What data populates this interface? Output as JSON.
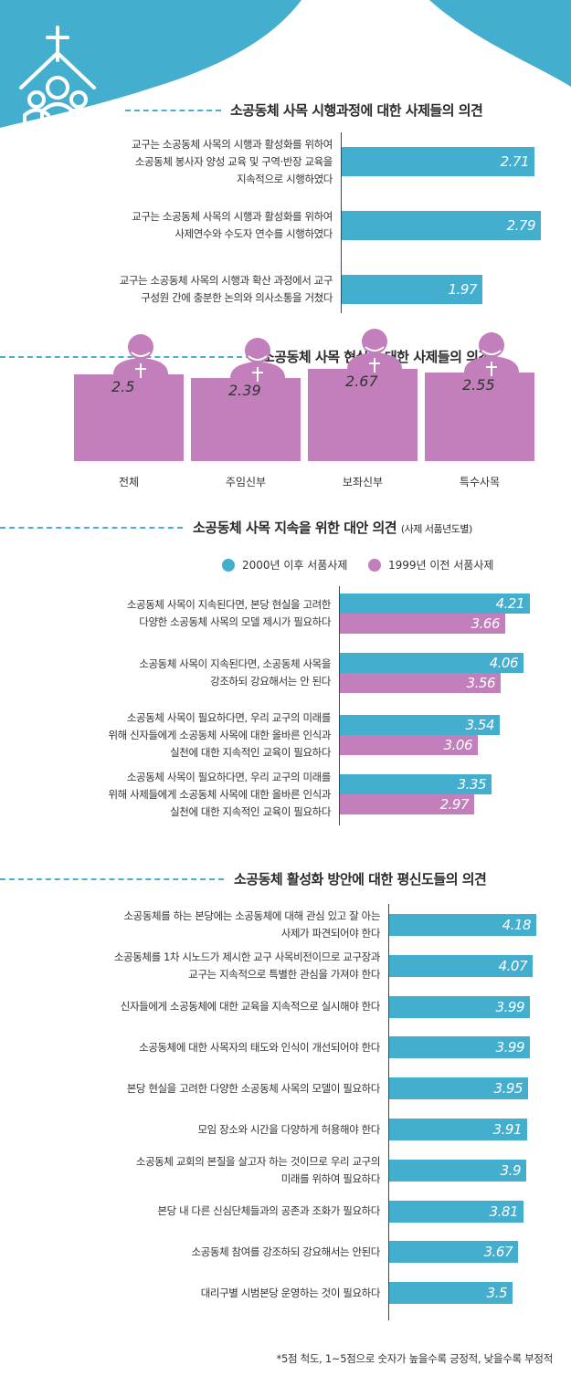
{
  "colors": {
    "teal": "#44aecf",
    "pink": "#c27fbb",
    "dash": "#4badd1"
  },
  "header": {
    "icon": "church-community-icon"
  },
  "sections": {
    "s1": {
      "title": "소공동체 사목 시행과정에 대한 사제들의 의견"
    },
    "s2": {
      "title": "소공동체 사목 현실에 대한 사제들의 의견"
    },
    "s3": {
      "title": "소공동체 사목 지속을 위한 대안 의견",
      "title_note": "(사제 서품년도별)"
    },
    "s4": {
      "title": "소공동체 활성화 방안에 대한 평신도들의 의견"
    }
  },
  "legend": {
    "series_a": "2000년 이후 서품사제",
    "series_b": "1999년 이전 서품사제"
  },
  "footnote": "*5점 척도, 1~5점으로 숫자가 높을수록 긍정적, 낮을수록 부정적",
  "chart_data": [
    {
      "type": "bar",
      "orientation": "horizontal",
      "title": "소공동체 사목 시행과정에 대한 사제들의 의견",
      "xlim": [
        0,
        5
      ],
      "categories": [
        [
          "교구는 소공동체 사목의 시행과 활성화를 위하여",
          "소공동체 봉사자 양성 교육 및 구역·반장 교육을",
          "지속적으로 시행하였다"
        ],
        [
          "교구는 소공동체 사목의 시행과 활성화를 위하여",
          "사제연수와 수도자 연수를 시행하였다"
        ],
        [
          "교구는 소공동체 사목의 시행과 확산 과정에서  교구",
          "구성원 간에 충분한 논의와 의사소통을 거쳤다"
        ]
      ],
      "values": [
        2.71,
        2.79,
        1.97
      ],
      "value_labels": [
        "2.71",
        "2.79",
        "1.97"
      ]
    },
    {
      "type": "bar",
      "orientation": "vertical",
      "title": "소공동체 사목 현실에 대한 사제들의 의견",
      "ylim": [
        0,
        5
      ],
      "categories": [
        "전체",
        "주임신부",
        "보좌신부",
        "특수사목"
      ],
      "values": [
        2.5,
        2.39,
        2.67,
        2.55
      ],
      "value_labels": [
        "2.5",
        "2.39",
        "2.67",
        "2.55"
      ]
    },
    {
      "type": "bar",
      "orientation": "horizontal",
      "title": "소공동체 사목 지속을 위한 대안 의견",
      "xlim": [
        0,
        5
      ],
      "legend_position": "top-right",
      "categories": [
        [
          "소공동체 사목이 지속된다면, 본당 현실을 고려한",
          "다양한 소공동체 사목의 모델 제시가 필요하다"
        ],
        [
          "소공동체 사목이 지속된다면, 소공동체 사목을",
          "강조하되 강요해서는 안 된다"
        ],
        [
          "소공동체 사목이 필요하다면, 우리 교구의 미래를",
          "위해 신자들에게 소공동체 사목에 대한 올바른 인식과",
          "실천에 대한 지속적인 교육이 필요하다"
        ],
        [
          "소공동체 사목이 필요하다면, 우리 교구의 미래를",
          "위해 사제들에게 소공동체 사목에 대한 올바른 인식과",
          "실천에 대한 지속적인 교육이 필요하다"
        ]
      ],
      "series": [
        {
          "name": "2000년 이후 서품사제",
          "values": [
            4.21,
            4.06,
            3.54,
            3.35
          ],
          "value_labels": [
            "4.21",
            "4.06",
            "3.54",
            "3.35"
          ]
        },
        {
          "name": "1999년 이전 서품사제",
          "values": [
            3.66,
            3.56,
            3.06,
            2.97
          ],
          "value_labels": [
            "3.66",
            "3.56",
            "3.06",
            "2.97"
          ]
        }
      ]
    },
    {
      "type": "bar",
      "orientation": "horizontal",
      "title": "소공동체 활성화 방안에 대한 평신도들의 의견",
      "xlim": [
        0,
        5
      ],
      "categories": [
        [
          "소공동체를 하는 본당에는 소공동체에 대해 관심 있고 잘 아는",
          "사제가 파견되어야 한다"
        ],
        [
          "소공동체를 1차 시노드가 제시한 교구 사목비전이므로 교구장과",
          "교구는 지속적으로 특별한 관심을 가져야 한다"
        ],
        [
          "신자들에게 소공동체에 대한 교육을 지속적으로 실시해야 한다"
        ],
        [
          "소공동체에 대한 사목자의 태도와 인식이 개선되어야 한다"
        ],
        [
          "본당 현실을 고려한 다양한 소공동체 사목의 모델이 필요하다"
        ],
        [
          "모임 장소와 시간을 다양하게 허용해야 한다"
        ],
        [
          "소공동체 교회의 본질을 살고자 하는 것이므로 우리 교구의",
          "미래를 위하여 필요하다"
        ],
        [
          "본당 내 다른 신심단체들과의 공존과 조화가 필요하다"
        ],
        [
          "소공동체 참여를 강조하되 강요해서는 안된다"
        ],
        [
          "대리구별 시범본당 운영하는 것이 필요하다"
        ]
      ],
      "values": [
        4.18,
        4.07,
        3.99,
        3.99,
        3.95,
        3.91,
        3.9,
        3.81,
        3.67,
        3.5
      ],
      "value_labels": [
        "4.18",
        "4.07",
        "3.99",
        "3.99",
        "3.95",
        "3.91",
        "3.9",
        "3.81",
        "3.67",
        "3.5"
      ]
    }
  ]
}
